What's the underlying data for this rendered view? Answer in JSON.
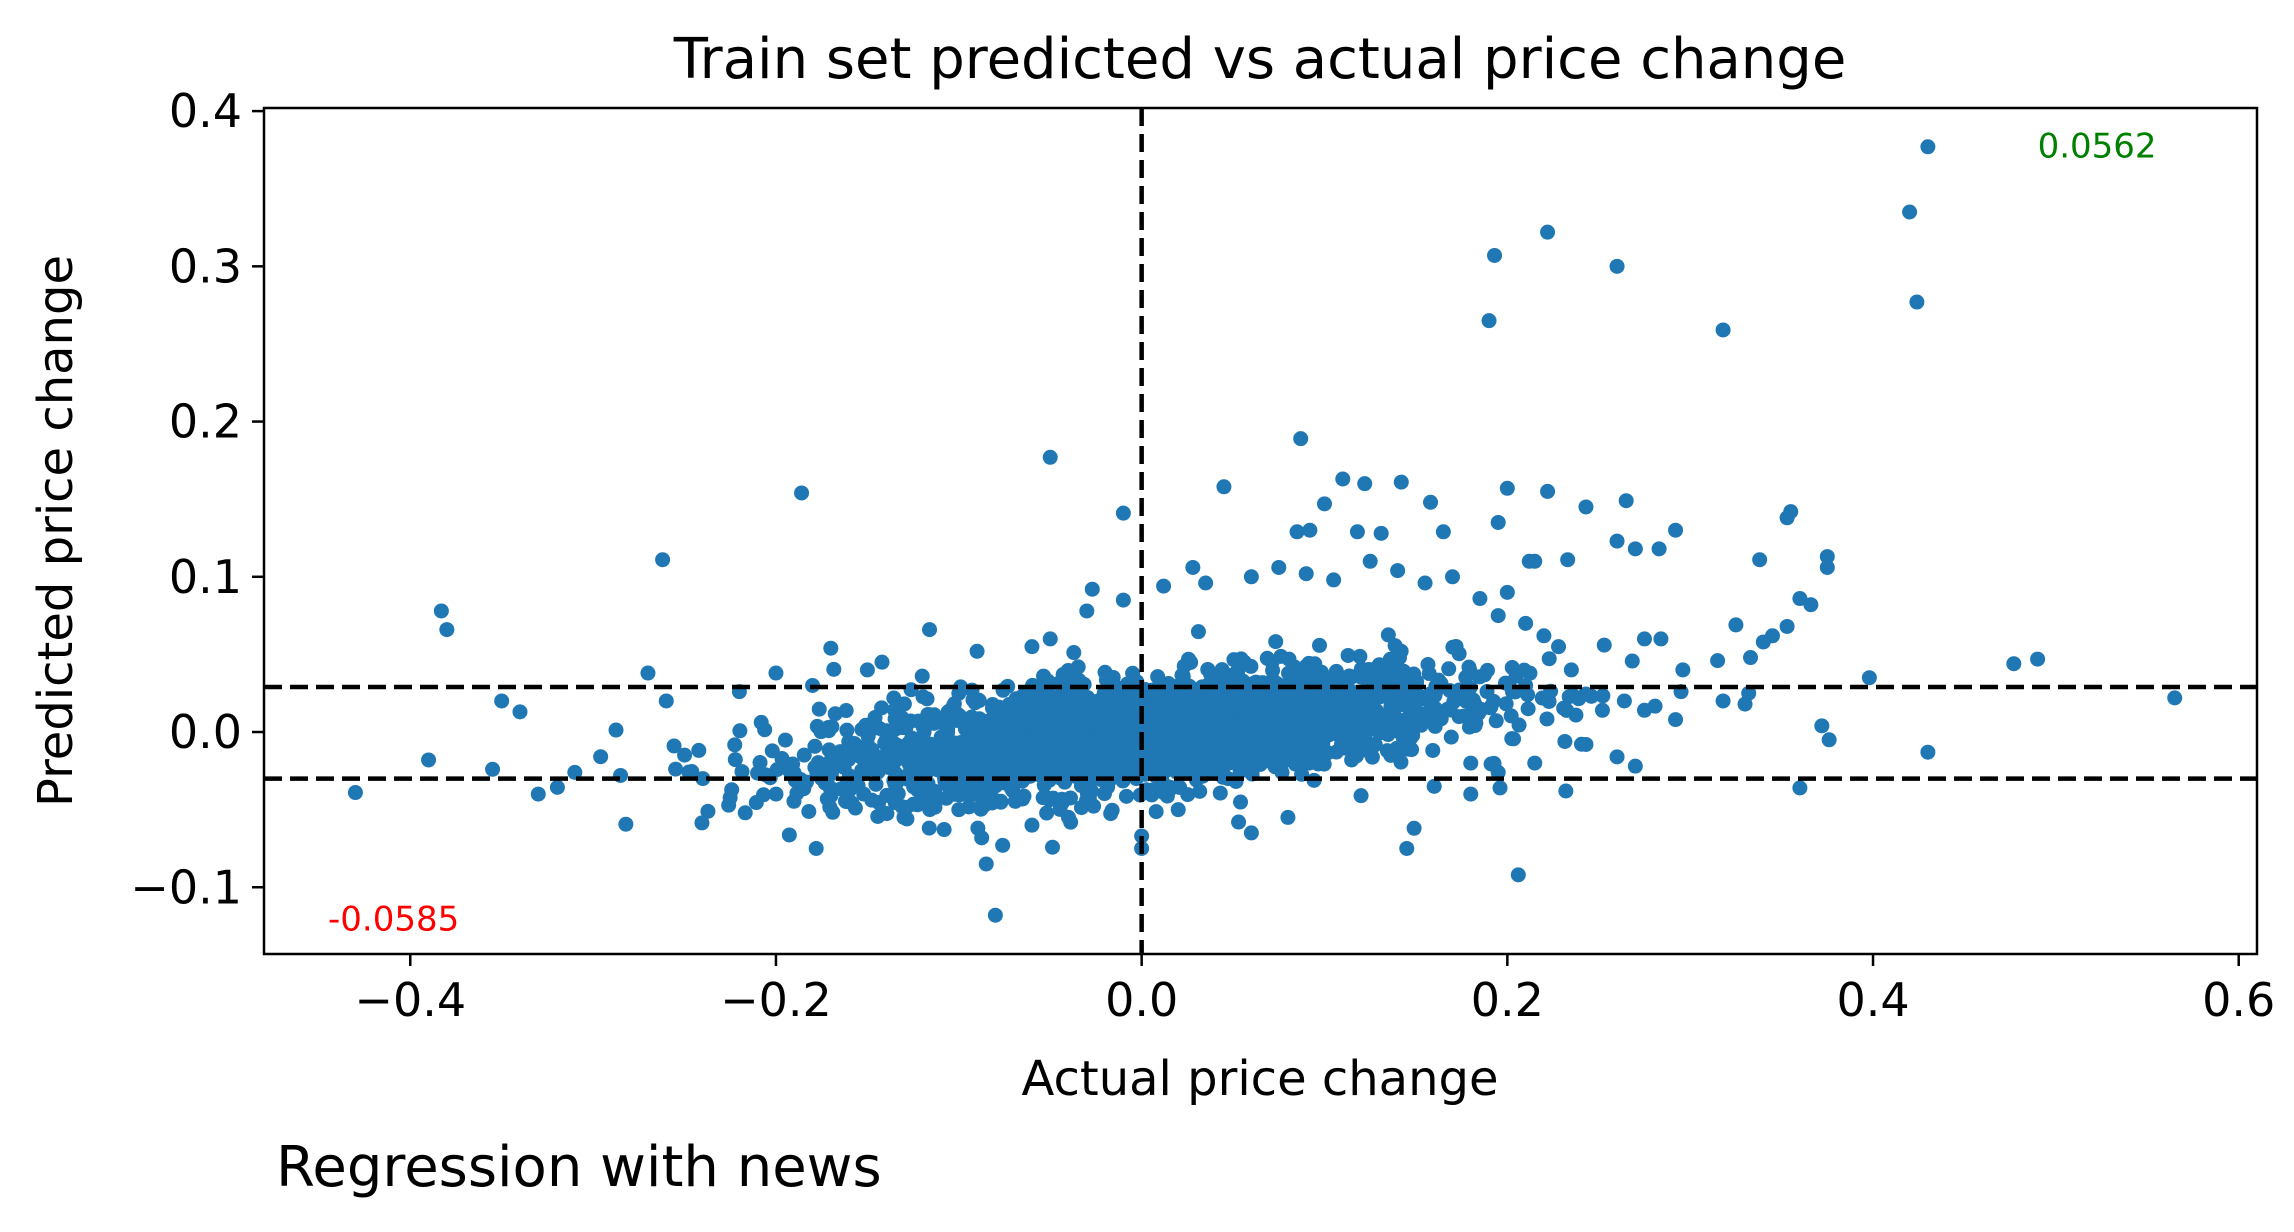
{
  "chart_data": {
    "type": "scatter",
    "title": "Train set predicted vs actual price change",
    "xlabel": "Actual price change",
    "ylabel": "Predicted price change",
    "caption": "Regression with news",
    "xlim": [
      -0.48,
      0.61
    ],
    "ylim": [
      -0.143,
      0.402
    ],
    "xticks": [
      -0.4,
      -0.2,
      0.0,
      0.2,
      0.4,
      0.6
    ],
    "xtick_labels": [
      "−0.4",
      "−0.2",
      "0.0",
      "0.2",
      "0.4",
      "0.6"
    ],
    "yticks": [
      -0.1,
      0.0,
      0.1,
      0.2,
      0.3,
      0.4
    ],
    "ytick_labels": [
      "−0.1",
      "0.0",
      "0.1",
      "0.2",
      "0.3",
      "0.4"
    ],
    "grid": false,
    "point_color": "#1f77b4",
    "reference_lines": [
      {
        "orientation": "horizontal",
        "value": 0.029,
        "style": "dashed",
        "color": "#000000"
      },
      {
        "orientation": "horizontal",
        "value": -0.03,
        "style": "dashed",
        "color": "#000000"
      },
      {
        "orientation": "vertical",
        "value": 0.0,
        "style": "dashed",
        "color": "#000000"
      }
    ],
    "annotations": [
      {
        "text": "0.0562",
        "x": 0.49,
        "y": 0.37,
        "color": "#008000"
      },
      {
        "text": "-0.0585",
        "x": -0.445,
        "y": -0.128,
        "color": "#ff0000"
      }
    ],
    "points": [
      [
        0.43,
        0.377
      ],
      [
        0.42,
        0.335
      ],
      [
        0.424,
        0.277
      ],
      [
        0.222,
        0.322
      ],
      [
        0.193,
        0.307
      ],
      [
        0.26,
        0.3
      ],
      [
        0.19,
        0.265
      ],
      [
        0.318,
        0.259
      ],
      [
        0.087,
        0.189
      ],
      [
        -0.05,
        0.177
      ],
      [
        -0.186,
        0.154
      ],
      [
        0.045,
        0.158
      ],
      [
        0.11,
        0.163
      ],
      [
        0.122,
        0.16
      ],
      [
        0.142,
        0.161
      ],
      [
        0.2,
        0.157
      ],
      [
        0.222,
        0.155
      ],
      [
        -0.262,
        0.111
      ],
      [
        -0.383,
        0.078
      ],
      [
        -0.38,
        0.066
      ],
      [
        -0.01,
        0.141
      ],
      [
        0.355,
        0.142
      ],
      [
        0.353,
        0.138
      ],
      [
        0.265,
        0.149
      ],
      [
        0.243,
        0.145
      ],
      [
        0.292,
        0.13
      ],
      [
        0.36,
        0.086
      ],
      [
        0.375,
        0.113
      ],
      [
        0.375,
        0.106
      ],
      [
        0.338,
        0.111
      ],
      [
        0.366,
        0.082
      ],
      [
        0.398,
        0.035
      ],
      [
        0.477,
        0.044
      ],
      [
        0.49,
        0.047
      ],
      [
        0.565,
        0.022
      ],
      [
        0.372,
        0.004
      ],
      [
        0.376,
        -0.005
      ],
      [
        0.43,
        -0.013
      ],
      [
        0.36,
        -0.036
      ],
      [
        0.206,
        -0.092
      ],
      [
        0.145,
        -0.075
      ],
      [
        0.149,
        -0.062
      ],
      [
        -0.08,
        -0.118
      ],
      [
        -0.085,
        -0.085
      ],
      [
        -0.076,
        -0.073
      ],
      [
        -0.178,
        -0.075
      ],
      [
        0.0,
        -0.075
      ],
      [
        0.0,
        -0.067
      ],
      [
        -0.43,
        -0.039
      ],
      [
        -0.39,
        -0.018
      ],
      [
        -0.355,
        -0.024
      ],
      [
        -0.33,
        -0.04
      ],
      [
        -0.34,
        0.013
      ],
      [
        -0.35,
        0.02
      ],
      [
        -0.27,
        0.038
      ],
      [
        -0.2,
        0.038
      ],
      [
        -0.17,
        0.054
      ],
      [
        -0.142,
        0.045
      ],
      [
        -0.116,
        0.066
      ],
      [
        -0.05,
        0.06
      ],
      [
        -0.027,
        0.092
      ],
      [
        0.028,
        0.106
      ],
      [
        0.085,
        0.129
      ],
      [
        0.1,
        0.147
      ],
      [
        0.092,
        0.13
      ],
      [
        0.158,
        0.148
      ],
      [
        0.118,
        0.129
      ],
      [
        0.131,
        0.128
      ],
      [
        0.165,
        0.129
      ],
      [
        0.195,
        0.135
      ],
      [
        0.215,
        0.11
      ],
      [
        0.233,
        0.111
      ],
      [
        0.2,
        0.09
      ],
      [
        0.212,
        0.11
      ],
      [
        0.27,
        0.118
      ],
      [
        0.283,
        0.118
      ],
      [
        0.26,
        0.123
      ],
      [
        0.253,
        0.056
      ],
      [
        0.275,
        0.06
      ],
      [
        0.284,
        0.06
      ],
      [
        0.315,
        0.046
      ],
      [
        0.325,
        0.069
      ],
      [
        0.333,
        0.048
      ],
      [
        0.34,
        0.058
      ],
      [
        0.332,
        0.025
      ],
      [
        0.353,
        0.068
      ],
      [
        0.296,
        0.04
      ],
      [
        0.295,
        0.026
      ],
      [
        0.292,
        0.008
      ],
      [
        0.318,
        0.02
      ],
      [
        0.33,
        0.018
      ],
      [
        0.345,
        0.062
      ],
      [
        0.246,
        0.023
      ],
      [
        0.252,
        0.014
      ],
      [
        0.264,
        0.02
      ],
      [
        0.275,
        0.014
      ],
      [
        0.243,
        -0.008
      ],
      [
        0.26,
        -0.016
      ],
      [
        0.27,
        -0.022
      ],
      [
        0.232,
        -0.038
      ],
      [
        0.196,
        -0.036
      ],
      [
        0.18,
        -0.04
      ],
      [
        0.16,
        -0.035
      ],
      [
        0.12,
        -0.041
      ],
      [
        0.08,
        -0.055
      ],
      [
        0.06,
        -0.065
      ],
      [
        0.053,
        -0.058
      ],
      [
        0.02,
        -0.05
      ],
      [
        -0.04,
        -0.055
      ],
      [
        -0.06,
        -0.06
      ],
      [
        -0.1,
        -0.05
      ],
      [
        -0.13,
        -0.055
      ],
      [
        -0.152,
        -0.04
      ],
      [
        -0.2,
        -0.04
      ],
      [
        -0.24,
        -0.03
      ],
      [
        -0.285,
        -0.028
      ],
      [
        -0.31,
        -0.026
      ],
      [
        -0.26,
        0.02
      ],
      [
        -0.22,
        0.026
      ],
      [
        -0.18,
        0.03
      ],
      [
        -0.15,
        0.04
      ],
      [
        -0.12,
        0.036
      ],
      [
        -0.09,
        0.052
      ],
      [
        -0.06,
        0.055
      ],
      [
        -0.03,
        0.078
      ],
      [
        -0.01,
        0.085
      ],
      [
        0.012,
        0.094
      ],
      [
        0.035,
        0.096
      ],
      [
        0.06,
        0.1
      ],
      [
        0.075,
        0.106
      ],
      [
        0.09,
        0.102
      ],
      [
        0.105,
        0.098
      ],
      [
        0.125,
        0.11
      ],
      [
        0.14,
        0.104
      ],
      [
        0.155,
        0.096
      ],
      [
        0.17,
        0.1
      ],
      [
        0.185,
        0.086
      ],
      [
        0.195,
        0.075
      ],
      [
        0.21,
        0.07
      ],
      [
        0.22,
        0.062
      ],
      [
        0.228,
        0.055
      ],
      [
        0.235,
        0.04
      ],
      [
        0.21,
        0.03
      ],
      [
        0.215,
        -0.02
      ],
      [
        0.195,
        -0.026
      ],
      [
        0.18,
        -0.02
      ]
    ]
  }
}
